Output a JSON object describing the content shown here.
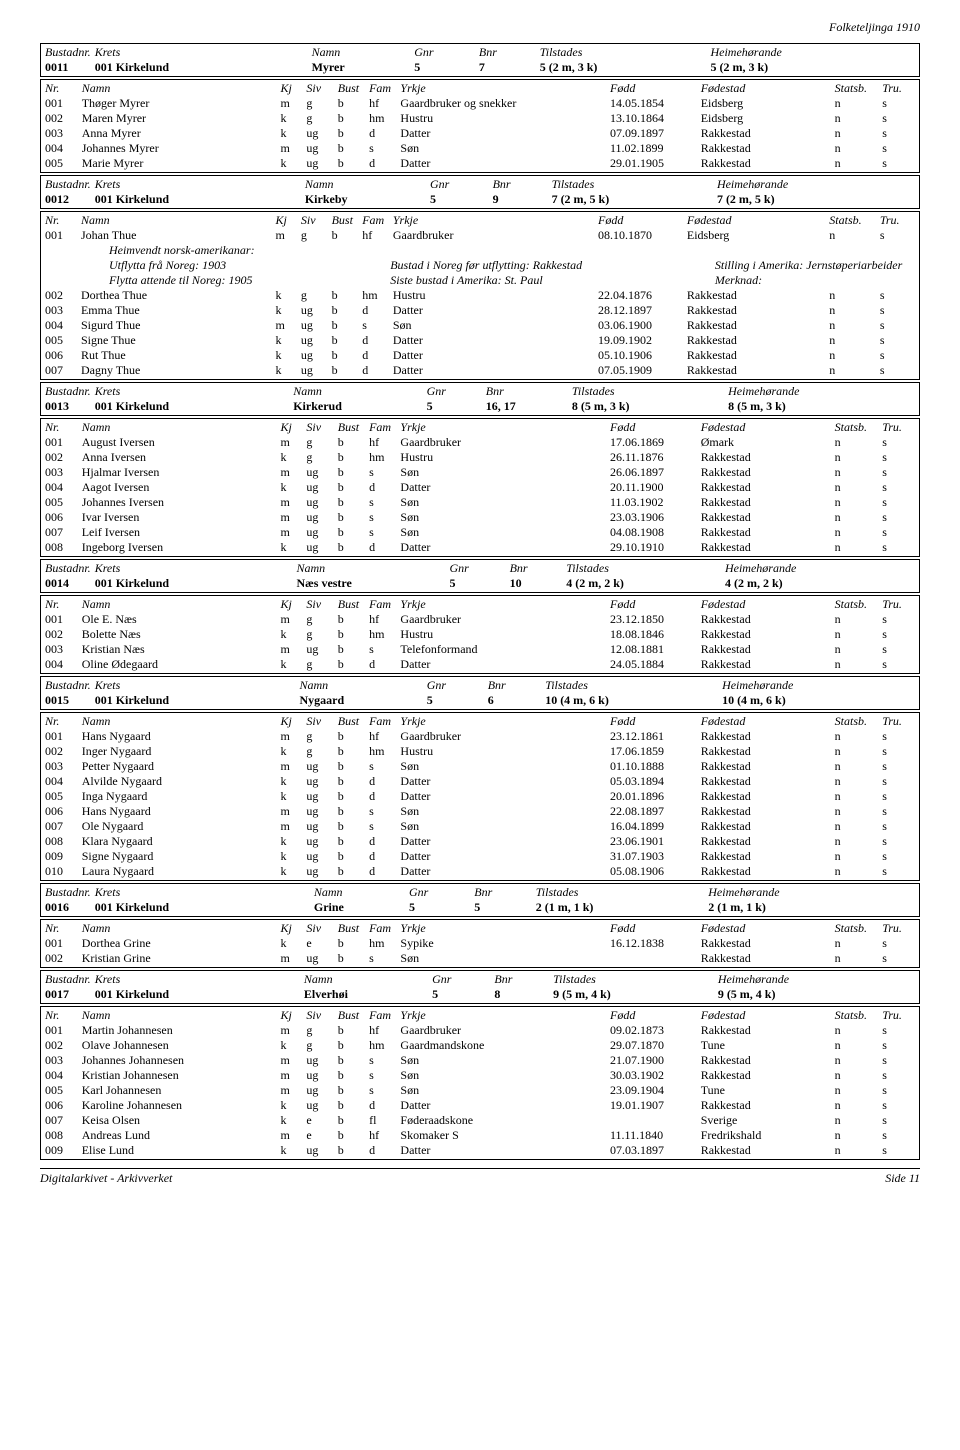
{
  "page_title": "Folketeljinga 1910",
  "footer_left": "Digitalarkivet - Arkivverket",
  "footer_right": "Side 11",
  "bustad_header": {
    "bustadnr": "Bustadnr.",
    "krets": "Krets",
    "namn": "Namn",
    "gnr": "Gnr",
    "bnr": "Bnr",
    "tilstades": "Tilstades",
    "heimehorande": "Heimehørande"
  },
  "person_header": {
    "nr": "Nr.",
    "namn": "Namn",
    "kj": "Kj",
    "siv": "Siv",
    "bust": "Bust",
    "fam": "Fam",
    "yrkje": "Yrkje",
    "fodd": "Fødd",
    "fodestad": "Fødestad",
    "statsb": "Statsb.",
    "tru": "Tru."
  },
  "emigrant": {
    "heimvendt": "Heimvendt norsk-amerikanar:",
    "utflytta": "Utflytta frå Noreg: 1903",
    "bustad_noreg": "Bustad i Noreg før utflytting: Rakkestad",
    "stilling": "Stilling i Amerika: Jernstøperiarbeider",
    "flytta": "Flytta attende til Noreg: 1905",
    "siste": "Siste bustad i Amerika: St. Paul",
    "merknad": "Merknad:"
  },
  "entries": [
    {
      "bustad": [
        "0011",
        "001 Kirkelund",
        "Myrer",
        "5",
        "7",
        "5 (2 m, 3 k)",
        "5 (2 m, 3 k)"
      ],
      "persons": [
        [
          "001",
          "Thøger Myrer",
          "m",
          "g",
          "b",
          "hf",
          "Gaardbruker og snekker",
          "14.05.1854",
          "Eidsberg",
          "n",
          "s"
        ],
        [
          "002",
          "Maren Myrer",
          "k",
          "g",
          "b",
          "hm",
          "Hustru",
          "13.10.1864",
          "Eidsberg",
          "n",
          "s"
        ],
        [
          "003",
          "Anna Myrer",
          "k",
          "ug",
          "b",
          "d",
          "Datter",
          "07.09.1897",
          "Rakkestad",
          "n",
          "s"
        ],
        [
          "004",
          "Johannes Myrer",
          "m",
          "ug",
          "b",
          "s",
          "Søn",
          "11.02.1899",
          "Rakkestad",
          "n",
          "s"
        ],
        [
          "005",
          "Marie Myrer",
          "k",
          "ug",
          "b",
          "d",
          "Datter",
          "29.01.1905",
          "Rakkestad",
          "n",
          "s"
        ]
      ]
    },
    {
      "bustad": [
        "0012",
        "001 Kirkelund",
        "Kirkeby",
        "5",
        "9",
        "7 (2 m, 5 k)",
        "7 (2 m, 5 k)"
      ],
      "persons": [
        [
          "001",
          "Johan Thue",
          "m",
          "g",
          "b",
          "hf",
          "Gaardbruker",
          "08.10.1870",
          "Eidsberg",
          "n",
          "s"
        ]
      ],
      "has_emigrant": true,
      "persons2": [
        [
          "002",
          "Dorthea Thue",
          "k",
          "g",
          "b",
          "hm",
          "Hustru",
          "22.04.1876",
          "Rakkestad",
          "n",
          "s"
        ],
        [
          "003",
          "Emma Thue",
          "k",
          "ug",
          "b",
          "d",
          "Datter",
          "28.12.1897",
          "Rakkestad",
          "n",
          "s"
        ],
        [
          "004",
          "Sigurd Thue",
          "m",
          "ug",
          "b",
          "s",
          "Søn",
          "03.06.1900",
          "Rakkestad",
          "n",
          "s"
        ],
        [
          "005",
          "Signe Thue",
          "k",
          "ug",
          "b",
          "d",
          "Datter",
          "19.09.1902",
          "Rakkestad",
          "n",
          "s"
        ],
        [
          "006",
          "Rut Thue",
          "k",
          "ug",
          "b",
          "d",
          "Datter",
          "05.10.1906",
          "Rakkestad",
          "n",
          "s"
        ],
        [
          "007",
          "Dagny Thue",
          "k",
          "ug",
          "b",
          "d",
          "Datter",
          "07.05.1909",
          "Rakkestad",
          "n",
          "s"
        ]
      ]
    },
    {
      "bustad": [
        "0013",
        "001 Kirkelund",
        "Kirkerud",
        "5",
        "16, 17",
        "8 (5 m, 3 k)",
        "8 (5 m, 3 k)"
      ],
      "persons": [
        [
          "001",
          "August Iversen",
          "m",
          "g",
          "b",
          "hf",
          "Gaardbruker",
          "17.06.1869",
          "Ømark",
          "n",
          "s"
        ],
        [
          "002",
          "Anna Iversen",
          "k",
          "g",
          "b",
          "hm",
          "Hustru",
          "26.11.1876",
          "Rakkestad",
          "n",
          "s"
        ],
        [
          "003",
          "Hjalmar Iversen",
          "m",
          "ug",
          "b",
          "s",
          "Søn",
          "26.06.1897",
          "Rakkestad",
          "n",
          "s"
        ],
        [
          "004",
          "Aagot Iversen",
          "k",
          "ug",
          "b",
          "d",
          "Datter",
          "20.11.1900",
          "Rakkestad",
          "n",
          "s"
        ],
        [
          "005",
          "Johannes Iversen",
          "m",
          "ug",
          "b",
          "s",
          "Søn",
          "11.03.1902",
          "Rakkestad",
          "n",
          "s"
        ],
        [
          "006",
          "Ivar Iversen",
          "m",
          "ug",
          "b",
          "s",
          "Søn",
          "23.03.1906",
          "Rakkestad",
          "n",
          "s"
        ],
        [
          "007",
          "Leif Iversen",
          "m",
          "ug",
          "b",
          "s",
          "Søn",
          "04.08.1908",
          "Rakkestad",
          "n",
          "s"
        ],
        [
          "008",
          "Ingeborg Iversen",
          "k",
          "ug",
          "b",
          "d",
          "Datter",
          "29.10.1910",
          "Rakkestad",
          "n",
          "s"
        ]
      ]
    },
    {
      "bustad": [
        "0014",
        "001 Kirkelund",
        "Næs vestre",
        "5",
        "10",
        "4 (2 m, 2 k)",
        "4 (2 m, 2 k)"
      ],
      "persons": [
        [
          "001",
          "Ole E. Næs",
          "m",
          "g",
          "b",
          "hf",
          "Gaardbruker",
          "23.12.1850",
          "Rakkestad",
          "n",
          "s"
        ],
        [
          "002",
          "Bolette Næs",
          "k",
          "g",
          "b",
          "hm",
          "Hustru",
          "18.08.1846",
          "Rakkestad",
          "n",
          "s"
        ],
        [
          "003",
          "Kristian Næs",
          "m",
          "ug",
          "b",
          "s",
          "Telefonformand",
          "12.08.1881",
          "Rakkestad",
          "n",
          "s"
        ],
        [
          "004",
          "Oline Ødegaard",
          "k",
          "g",
          "b",
          "d",
          "Datter",
          "24.05.1884",
          "Rakkestad",
          "n",
          "s"
        ]
      ]
    },
    {
      "bustad": [
        "0015",
        "001 Kirkelund",
        "Nygaard",
        "5",
        "6",
        "10 (4 m, 6 k)",
        "10 (4 m, 6 k)"
      ],
      "persons": [
        [
          "001",
          "Hans Nygaard",
          "m",
          "g",
          "b",
          "hf",
          "Gaardbruker",
          "23.12.1861",
          "Rakkestad",
          "n",
          "s"
        ],
        [
          "002",
          "Inger Nygaard",
          "k",
          "g",
          "b",
          "hm",
          "Hustru",
          "17.06.1859",
          "Rakkestad",
          "n",
          "s"
        ],
        [
          "003",
          "Petter Nygaard",
          "m",
          "ug",
          "b",
          "s",
          "Søn",
          "01.10.1888",
          "Rakkestad",
          "n",
          "s"
        ],
        [
          "004",
          "Alvilde Nygaard",
          "k",
          "ug",
          "b",
          "d",
          "Datter",
          "05.03.1894",
          "Rakkestad",
          "n",
          "s"
        ],
        [
          "005",
          "Inga Nygaard",
          "k",
          "ug",
          "b",
          "d",
          "Datter",
          "20.01.1896",
          "Rakkestad",
          "n",
          "s"
        ],
        [
          "006",
          "Hans Nygaard",
          "m",
          "ug",
          "b",
          "s",
          "Søn",
          "22.08.1897",
          "Rakkestad",
          "n",
          "s"
        ],
        [
          "007",
          "Ole Nygaard",
          "m",
          "ug",
          "b",
          "s",
          "Søn",
          "16.04.1899",
          "Rakkestad",
          "n",
          "s"
        ],
        [
          "008",
          "Klara Nygaard",
          "k",
          "ug",
          "b",
          "d",
          "Datter",
          "23.06.1901",
          "Rakkestad",
          "n",
          "s"
        ],
        [
          "009",
          "Signe Nygaard",
          "k",
          "ug",
          "b",
          "d",
          "Datter",
          "31.07.1903",
          "Rakkestad",
          "n",
          "s"
        ],
        [
          "010",
          "Laura Nygaard",
          "k",
          "ug",
          "b",
          "d",
          "Datter",
          "05.08.1906",
          "Rakkestad",
          "n",
          "s"
        ]
      ]
    },
    {
      "bustad": [
        "0016",
        "001 Kirkelund",
        "Grine",
        "5",
        "5",
        "2 (1 m, 1 k)",
        "2 (1 m, 1 k)"
      ],
      "persons": [
        [
          "001",
          "Dorthea Grine",
          "k",
          "e",
          "b",
          "hm",
          "Sypike",
          "16.12.1838",
          "Rakkestad",
          "n",
          "s"
        ],
        [
          "002",
          "Kristian Grine",
          "m",
          "ug",
          "b",
          "s",
          "Søn",
          "",
          "Rakkestad",
          "n",
          "s"
        ]
      ]
    },
    {
      "bustad": [
        "0017",
        "001 Kirkelund",
        "Elverhøi",
        "5",
        "8",
        "9 (5 m, 4 k)",
        "9 (5 m, 4 k)"
      ],
      "persons": [
        [
          "001",
          "Martin Johannesen",
          "m",
          "g",
          "b",
          "hf",
          "Gaardbruker",
          "09.02.1873",
          "Rakkestad",
          "n",
          "s"
        ],
        [
          "002",
          "Olave Johannesen",
          "k",
          "g",
          "b",
          "hm",
          "Gaardmandskone",
          "29.07.1870",
          "Tune",
          "n",
          "s"
        ],
        [
          "003",
          "Johannes Johannesen",
          "m",
          "ug",
          "b",
          "s",
          "Søn",
          "21.07.1900",
          "Rakkestad",
          "n",
          "s"
        ],
        [
          "004",
          "Kristian Johannesen",
          "m",
          "ug",
          "b",
          "s",
          "Søn",
          "30.03.1902",
          "Rakkestad",
          "n",
          "s"
        ],
        [
          "005",
          "Karl Johannesen",
          "m",
          "ug",
          "b",
          "s",
          "Søn",
          "23.09.1904",
          "Tune",
          "n",
          "s"
        ],
        [
          "006",
          "Karoline Johannesen",
          "k",
          "ug",
          "b",
          "d",
          "Datter",
          "19.01.1907",
          "Rakkestad",
          "n",
          "s"
        ],
        [
          "007",
          "Keisa Olsen",
          "k",
          "e",
          "b",
          "fl",
          "Føderaadskone",
          "",
          "Sverige",
          "n",
          "s"
        ],
        [
          "008",
          "Andreas Lund",
          "m",
          "e",
          "b",
          "hf",
          "Skomaker S",
          "11.11.1840",
          "Fredrikshald",
          "n",
          "s"
        ],
        [
          "009",
          "Elise Lund",
          "k",
          "ug",
          "b",
          "d",
          "Datter",
          "07.03.1897",
          "Rakkestad",
          "n",
          "s"
        ]
      ]
    }
  ]
}
